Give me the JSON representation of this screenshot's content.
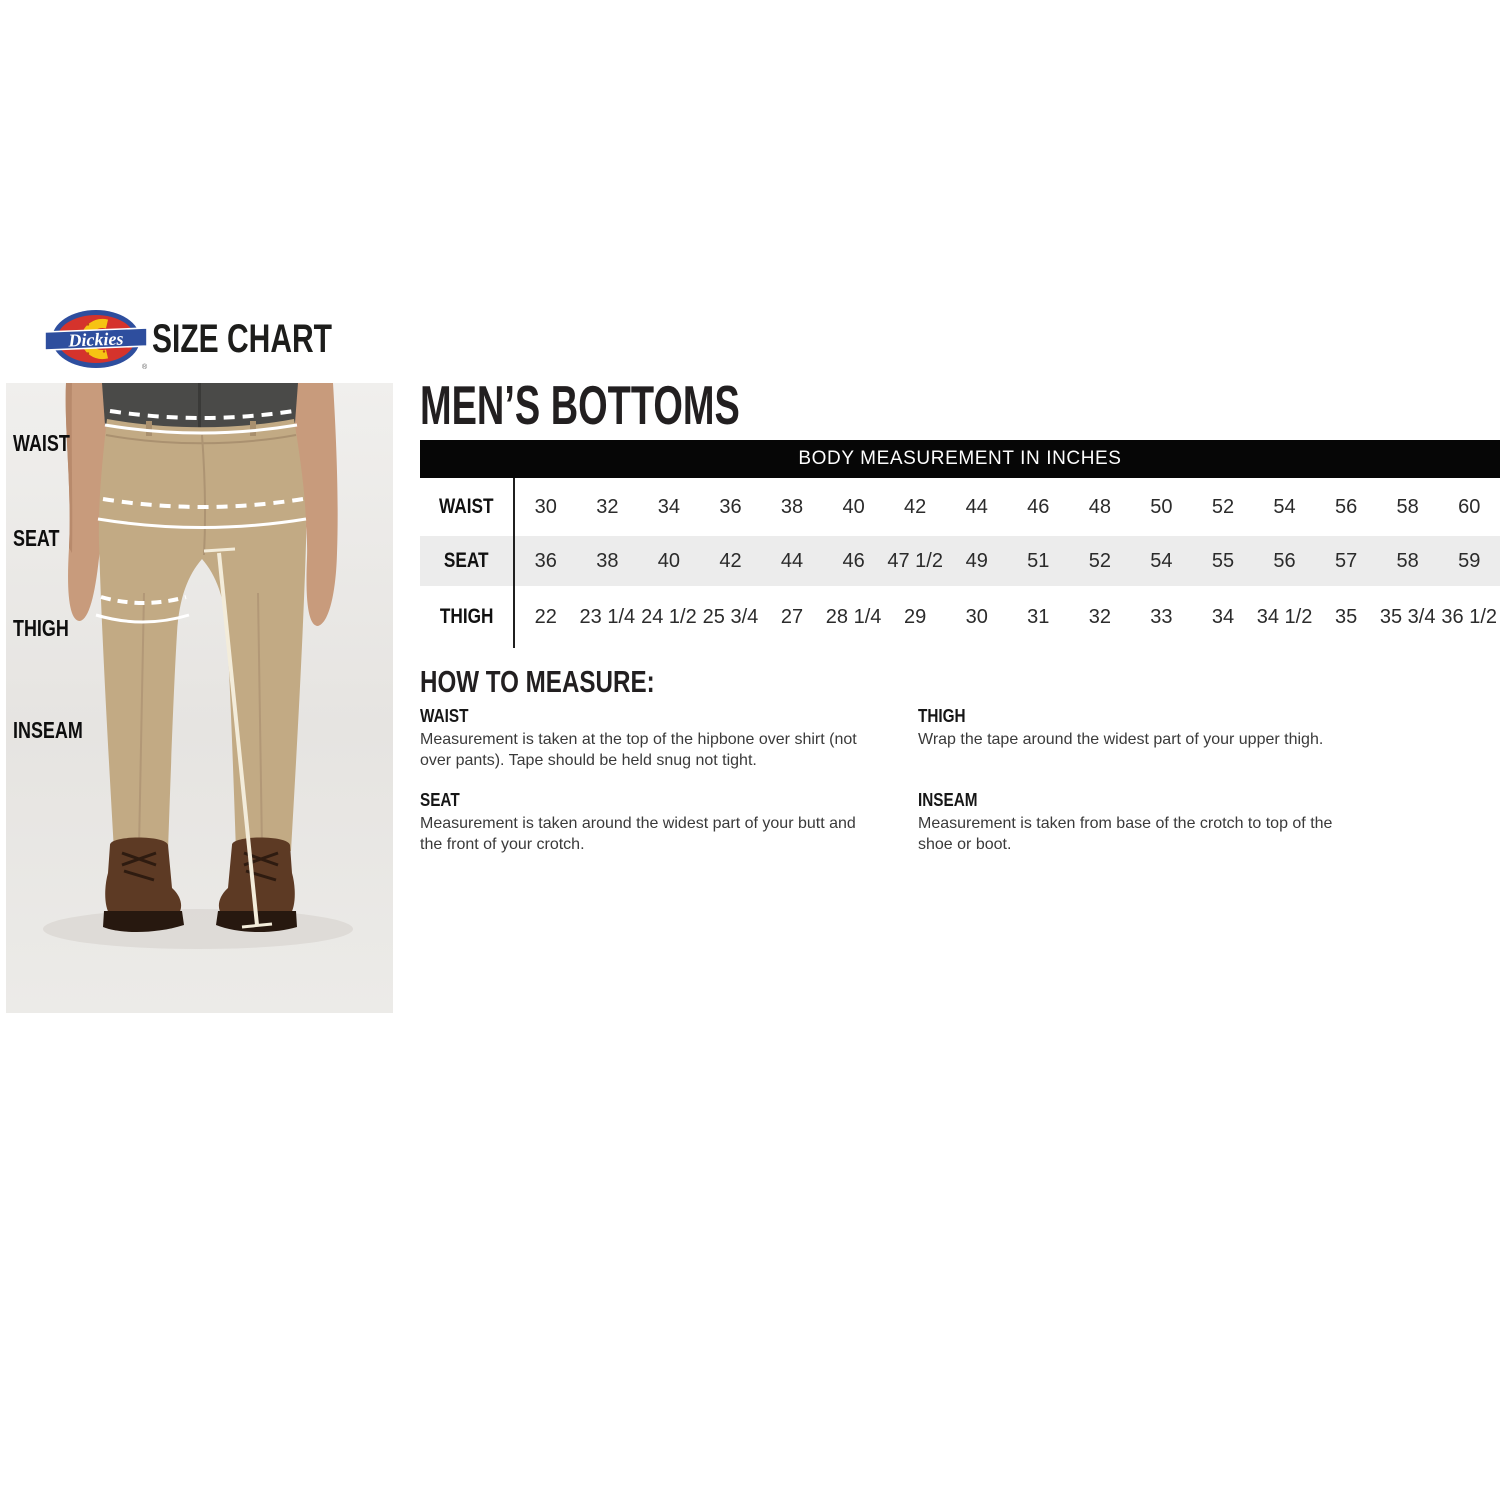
{
  "brand": {
    "logo_text": "Dickies",
    "registered_mark": "®",
    "header_title": "SIZE CHART"
  },
  "section_title": "MEN’S BOTTOMS",
  "figure": {
    "labels": [
      "WAIST",
      "SEAT",
      "THIGH",
      "INSEAM"
    ]
  },
  "table": {
    "header": "BODY MEASUREMENT IN INCHES",
    "rows": [
      {
        "label": "WAIST",
        "values": [
          "30",
          "32",
          "34",
          "36",
          "38",
          "40",
          "42",
          "44",
          "46",
          "48",
          "50",
          "52",
          "54",
          "56",
          "58",
          "60"
        ]
      },
      {
        "label": "SEAT",
        "values": [
          "36",
          "38",
          "40",
          "42",
          "44",
          "46",
          "47 1/2",
          "49",
          "51",
          "52",
          "54",
          "55",
          "56",
          "57",
          "58",
          "59"
        ]
      },
      {
        "label": "THIGH",
        "values": [
          "22",
          "23 1/4",
          "24 1/2",
          "25 3/4",
          "27",
          "28 1/4",
          "29",
          "30",
          "31",
          "32",
          "33",
          "34",
          "34 1/2",
          "35",
          "35 3/4",
          "36 1/2"
        ]
      }
    ]
  },
  "how_to_measure": {
    "title": "HOW TO MEASURE:",
    "items": [
      {
        "label": "WAIST",
        "text": "Measurement is taken at the top of the hipbone over shirt (not over pants). Tape should be held snug not tight."
      },
      {
        "label": "SEAT",
        "text": "Measurement is taken around the widest part of your butt and the front of your crotch."
      },
      {
        "label": "THIGH",
        "text": "Wrap the tape around the widest part of your upper thigh."
      },
      {
        "label": "INSEAM",
        "text": "Measurement is taken from base of the crotch to top of the shoe or boot."
      }
    ]
  },
  "colors": {
    "logo_red": "#d5332c",
    "logo_blue": "#2e4e9e",
    "logo_yellow": "#f6c313",
    "header_bar": "#060606",
    "alt_row_gray": "#ececec",
    "pants_khaki": "#c2aa84"
  }
}
